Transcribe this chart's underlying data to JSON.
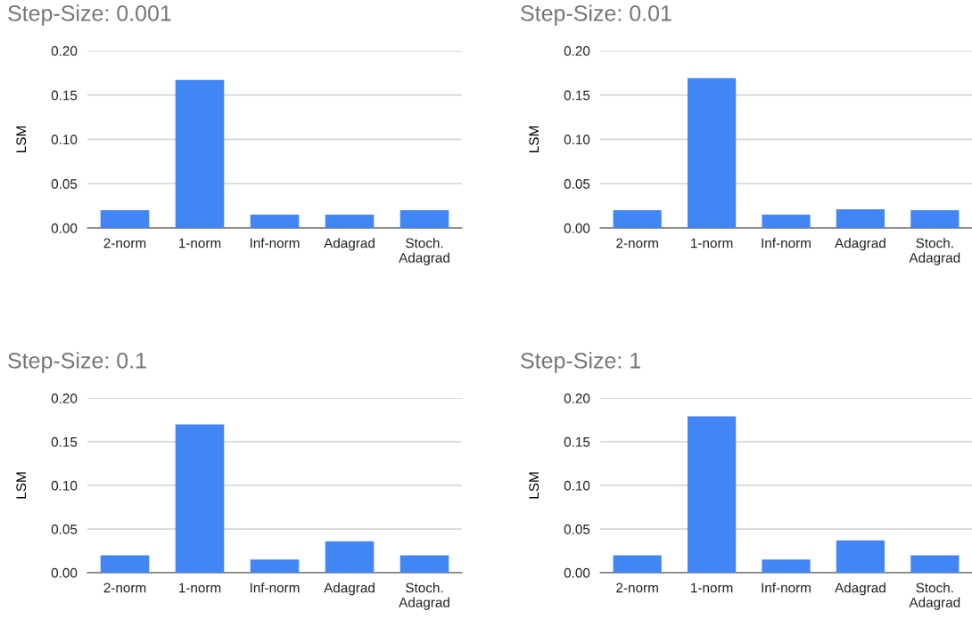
{
  "chart_data": [
    {
      "type": "bar",
      "title": "Step-Size: 0.001",
      "ylabel": "LSM",
      "categories": [
        "2-norm",
        "1-norm",
        "Inf-norm",
        "Adagrad",
        "Stoch.\nAdagrad"
      ],
      "color": "#4285f4",
      "values": [
        0.02,
        0.167,
        0.015,
        0.015,
        0.02
      ],
      "ylim": [
        0,
        0.2
      ],
      "yticks": [
        {
          "value": 0,
          "label": "0.00"
        },
        {
          "value": 0.05,
          "label": "0.05"
        },
        {
          "value": 0.1,
          "label": "0.10"
        },
        {
          "value": 0.15,
          "label": "0.15"
        },
        {
          "value": 0.2,
          "label": "0.20"
        }
      ],
      "grid": "y",
      "legend": false
    },
    {
      "type": "bar",
      "title": "Step-Size: 0.01",
      "ylabel": "LSM",
      "categories": [
        "2-norm",
        "1-norm",
        "Inf-norm",
        "Adagrad",
        "Stoch.\nAdagrad"
      ],
      "color": "#4285f4",
      "values": [
        0.02,
        0.169,
        0.015,
        0.021,
        0.02
      ],
      "ylim": [
        0,
        0.2
      ],
      "yticks": [
        {
          "value": 0,
          "label": "0.00"
        },
        {
          "value": 0.05,
          "label": "0.05"
        },
        {
          "value": 0.1,
          "label": "0.10"
        },
        {
          "value": 0.15,
          "label": "0.15"
        },
        {
          "value": 0.2,
          "label": "0.20"
        }
      ],
      "grid": "y",
      "legend": false
    },
    {
      "type": "bar",
      "title": "Step-Size: 0.1",
      "ylabel": "LSM",
      "categories": [
        "2-norm",
        "1-norm",
        "Inf-norm",
        "Adagrad",
        "Stoch.\nAdagrad"
      ],
      "color": "#4285f4",
      "values": [
        0.02,
        0.17,
        0.015,
        0.036,
        0.02
      ],
      "ylim": [
        0,
        0.2
      ],
      "yticks": [
        {
          "value": 0,
          "label": "0.00"
        },
        {
          "value": 0.05,
          "label": "0.05"
        },
        {
          "value": 0.1,
          "label": "0.10"
        },
        {
          "value": 0.15,
          "label": "0.15"
        },
        {
          "value": 0.2,
          "label": "0.20"
        }
      ],
      "grid": "y",
      "legend": false
    },
    {
      "type": "bar",
      "title": "Step-Size: 1",
      "ylabel": "LSM",
      "categories": [
        "2-norm",
        "1-norm",
        "Inf-norm",
        "Adagrad",
        "Stoch.\nAdagrad"
      ],
      "color": "#4285f4",
      "values": [
        0.02,
        0.179,
        0.015,
        0.037,
        0.02
      ],
      "ylim": [
        0,
        0.2
      ],
      "yticks": [
        {
          "value": 0,
          "label": "0.00"
        },
        {
          "value": 0.05,
          "label": "0.05"
        },
        {
          "value": 0.1,
          "label": "0.10"
        },
        {
          "value": 0.15,
          "label": "0.15"
        },
        {
          "value": 0.2,
          "label": "0.20"
        }
      ],
      "grid": "y",
      "legend": false
    }
  ]
}
